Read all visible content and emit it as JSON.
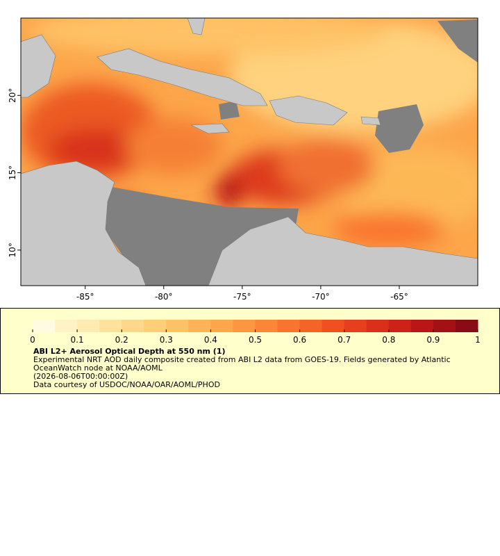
{
  "map": {
    "xlim": [
      -89.1,
      -60
    ],
    "ylim": [
      7.7,
      25
    ],
    "xticks": [
      {
        "value": -85,
        "label": "-85°"
      },
      {
        "value": -80,
        "label": "-80°"
      },
      {
        "value": -75,
        "label": "-75°"
      },
      {
        "value": -70,
        "label": "-70°"
      },
      {
        "value": -65,
        "label": "-65°"
      }
    ],
    "yticks": [
      {
        "value": 10,
        "label": "10°"
      },
      {
        "value": 15,
        "label": "15°"
      },
      {
        "value": 20,
        "label": "20°"
      }
    ]
  },
  "colorbar": {
    "lim": [
      0,
      1
    ],
    "ticks": [
      0,
      0.1,
      0.2,
      0.3,
      0.4,
      0.5,
      0.6,
      0.7,
      0.8,
      0.9,
      1
    ],
    "colors": [
      "#fffbe0",
      "#fff3c6",
      "#ffebb0",
      "#fee29c",
      "#fed88a",
      "#fece78",
      "#fec266",
      "#feb456",
      "#fea64a",
      "#fd973f",
      "#fc8636",
      "#f9752e",
      "#f46328",
      "#ee5022",
      "#e53f1d",
      "#da2f1a",
      "#cc2218",
      "#b91717",
      "#a31016",
      "#8a0a16"
    ],
    "title": "ABI L2+ Aerosol Optical Depth at 550 nm (1)",
    "lines": [
      "Experimental NRT AOD daily composite created from ABI L2 data from GOES-19. Fields generated by Atlantic OceanWatch node at NOAA/AOML",
      "(2026-08-06T00:00:00Z)",
      "Data courtesy of USDOC/NOAA/OAR/AOML/PHOD"
    ]
  }
}
